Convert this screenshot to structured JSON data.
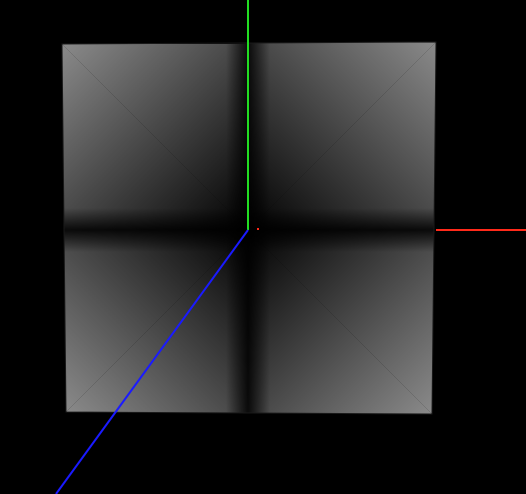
{
  "scene": {
    "background_color": "#000000",
    "object": "cube",
    "shading": "grayscale-radial",
    "colors": {
      "shade_dark": "#000000",
      "shade_light": "#8a8a8a",
      "outline": "#1a1a1a"
    },
    "axes": {
      "x": {
        "color": "#ff2a1a"
      },
      "y": {
        "color": "#22dd22"
      },
      "z": {
        "color": "#1a1aff"
      }
    },
    "origin_marker_color": "#ff2a1a"
  }
}
